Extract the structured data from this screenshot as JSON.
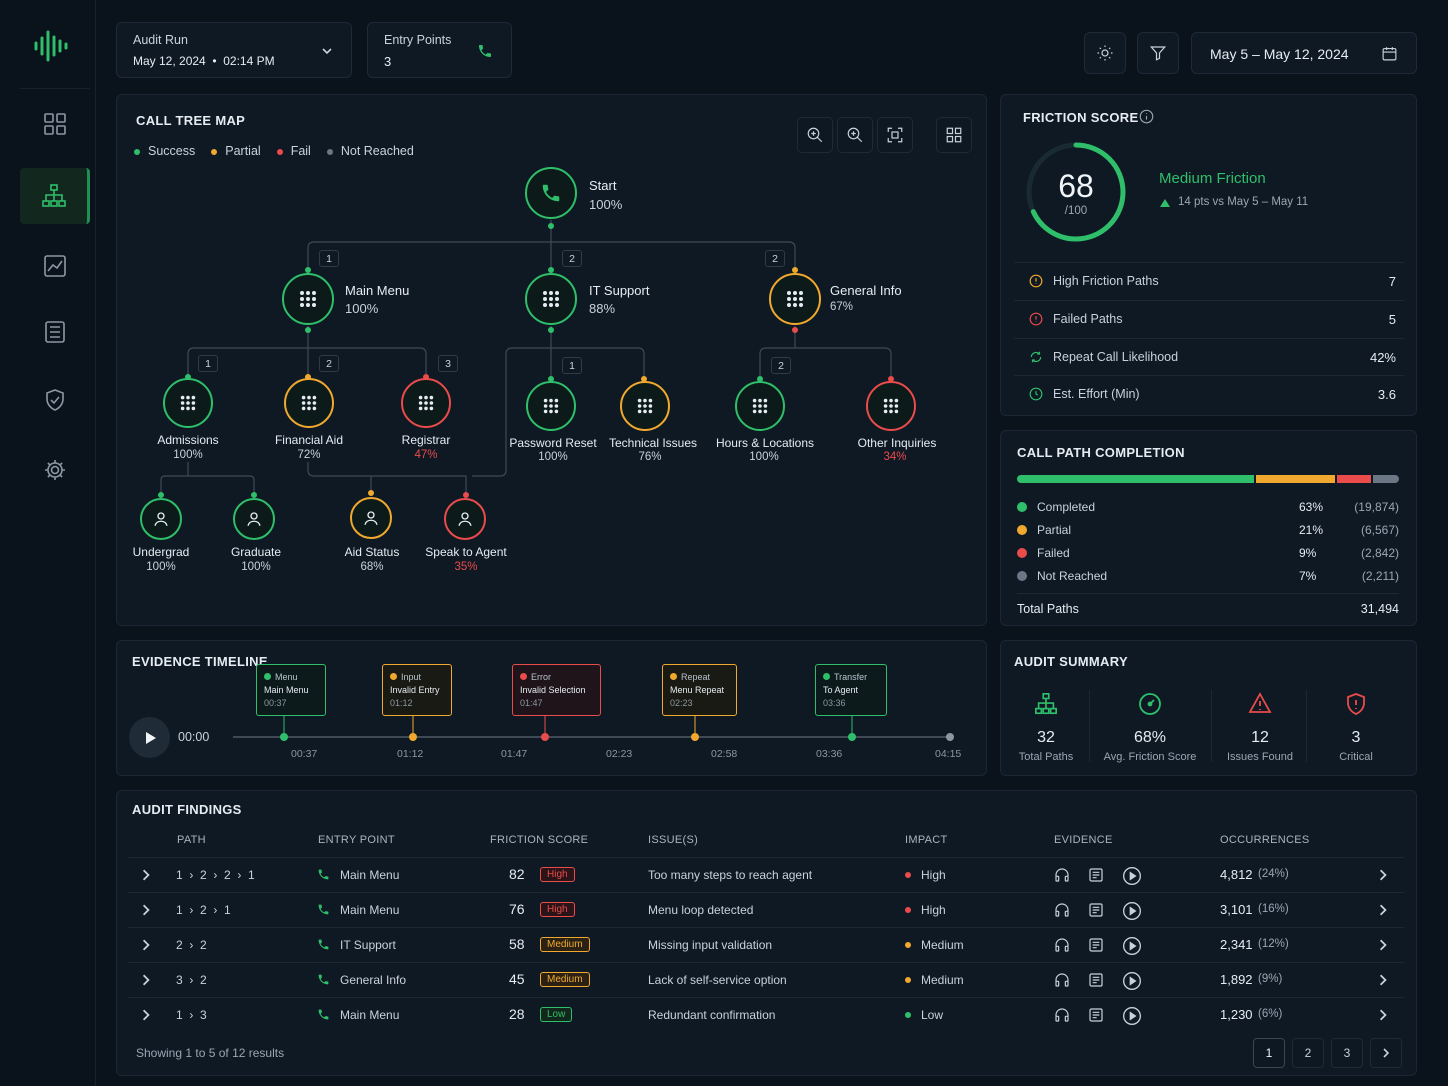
{
  "header": {
    "audit_run": {
      "label": "Audit Run",
      "value": "May 12, 2024  •  02:14 PM"
    },
    "entry_points": {
      "label": "Entry Points",
      "value": "3"
    },
    "date_range": "May 5 – May 12, 2024"
  },
  "colors": {
    "success": "#2fbf6a",
    "partial": "#f0a92e",
    "fail": "#ea4b4b",
    "not_reached": "#6b7785"
  },
  "tree": {
    "title": "CALL TREE MAP",
    "legend": [
      "Success",
      "Partial",
      "Fail",
      "Not Reached"
    ],
    "start": {
      "label": "Start",
      "pct": "100%"
    },
    "main_menu": {
      "label": "Main Menu",
      "pct": "100%",
      "tag": "1"
    },
    "it_support": {
      "label": "IT Support",
      "pct": "88%",
      "tag": "2"
    },
    "general_info": {
      "label": "General Info",
      "pct": "67%",
      "tag": "2"
    },
    "admissions": {
      "label": "Admissions",
      "pct": "100%",
      "tag": "1"
    },
    "financial_aid": {
      "label": "Financial Aid",
      "pct": "72%",
      "tag": "2"
    },
    "registrar": {
      "label": "Registrar",
      "pct": "47%",
      "tag": "3"
    },
    "password_reset": {
      "label": "Password Reset",
      "pct": "100%",
      "tag": "1"
    },
    "technical_issues": {
      "label": "Technical Issues",
      "pct": "76%"
    },
    "hours_locations": {
      "label": "Hours & Locations",
      "pct": "100%",
      "tag": "2"
    },
    "other_inquiries": {
      "label": "Other Inquiries",
      "pct": "34%"
    },
    "undergrad": {
      "label": "Undergrad",
      "pct": "100%"
    },
    "graduate": {
      "label": "Graduate",
      "pct": "100%"
    },
    "aid_status": {
      "label": "Aid Status",
      "pct": "68%"
    },
    "speak_agent": {
      "label": "Speak to Agent",
      "pct": "35%"
    }
  },
  "friction": {
    "title": "FRICTION SCORE",
    "score": "68",
    "out_of": "/100",
    "score_fraction": 0.68,
    "level": "Medium Friction",
    "delta": "14 pts vs May 5 – May 11",
    "rows": [
      {
        "label": "High Friction Paths",
        "value": "7"
      },
      {
        "label": "Failed Paths",
        "value": "5"
      },
      {
        "label": "Repeat Call Likelihood",
        "value": "42%"
      },
      {
        "label": "Est. Effort (Min)",
        "value": "3.6"
      }
    ]
  },
  "completion": {
    "title": "CALL PATH COMPLETION",
    "rows": [
      {
        "label": "Completed",
        "pct": "63%",
        "count": "(19,874)",
        "fraction": 0.63
      },
      {
        "label": "Partial",
        "pct": "21%",
        "count": "(6,567)",
        "fraction": 0.21
      },
      {
        "label": "Failed",
        "pct": "9%",
        "count": "(2,842)",
        "fraction": 0.09
      },
      {
        "label": "Not Reached",
        "pct": "7%",
        "count": "(2,211)",
        "fraction": 0.07
      }
    ],
    "total_label": "Total Paths",
    "total_value": "31,494"
  },
  "timeline": {
    "title": "EVIDENCE TIMELINE",
    "time": "00:00",
    "events": [
      {
        "type": "Menu",
        "desc": "Main Menu",
        "time": "00:37"
      },
      {
        "type": "Input",
        "desc": "Invalid Entry",
        "time": "01:12"
      },
      {
        "type": "Error",
        "desc": "Invalid Selection",
        "time": "01:47"
      },
      {
        "type": "Repeat",
        "desc": "Menu Repeat",
        "time": "02:23"
      },
      {
        "type": "Transfer",
        "desc": "To Agent",
        "time": "03:36"
      }
    ],
    "ticks": [
      "00:37",
      "01:12",
      "01:47",
      "02:23",
      "02:58",
      "03:36",
      "04:15"
    ]
  },
  "summary": {
    "title": "AUDIT SUMMARY",
    "items": [
      {
        "value": "32",
        "label": "Total Paths"
      },
      {
        "value": "68%",
        "label": "Avg. Friction Score"
      },
      {
        "value": "12",
        "label": "Issues Found"
      },
      {
        "value": "3",
        "label": "Critical"
      }
    ]
  },
  "findings": {
    "title": "AUDIT FINDINGS",
    "columns": [
      "PATH",
      "ENTRY POINT",
      "FRICTION SCORE",
      "ISSUE(S)",
      "IMPACT",
      "EVIDENCE",
      "OCCURRENCES"
    ],
    "rows": [
      {
        "path": "1  ›  2  ›  2  ›  1",
        "entry": "Main Menu",
        "score": "82",
        "level": "High",
        "issue": "Too many steps to reach agent",
        "impact": "High",
        "occ": "4,812",
        "occ_pct": "(24%)"
      },
      {
        "path": "1  ›  2  ›  1",
        "entry": "Main Menu",
        "score": "76",
        "level": "High",
        "issue": "Menu loop detected",
        "impact": "High",
        "occ": "3,101",
        "occ_pct": "(16%)"
      },
      {
        "path": "2  ›  2",
        "entry": "IT Support",
        "score": "58",
        "level": "Medium",
        "issue": "Missing input validation",
        "impact": "Medium",
        "occ": "2,341",
        "occ_pct": "(12%)"
      },
      {
        "path": "3  ›  2",
        "entry": "General Info",
        "score": "45",
        "level": "Medium",
        "issue": "Lack of self-service option",
        "impact": "Medium",
        "occ": "1,892",
        "occ_pct": "(9%)"
      },
      {
        "path": "1  ›  3",
        "entry": "Main Menu",
        "score": "28",
        "level": "Low",
        "issue": "Redundant confirmation",
        "impact": "Low",
        "occ": "1,230",
        "occ_pct": "(6%)"
      }
    ],
    "showing": "Showing 1 to 5 of 12 results",
    "pages": [
      "1",
      "2",
      "3"
    ]
  }
}
